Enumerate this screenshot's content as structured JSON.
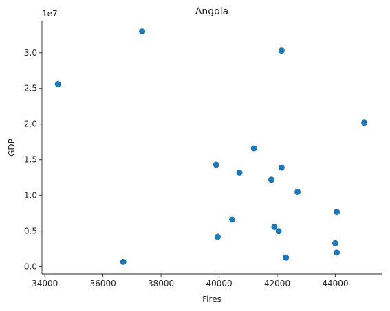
{
  "chart_data": {
    "type": "scatter",
    "title": "Angola",
    "xlabel": "Fires",
    "ylabel": "GDP",
    "y_offset_label": "1e7",
    "x_range": [
      33900,
      45600
    ],
    "y_range": [
      -0.1,
      3.45
    ],
    "x_ticks": [
      34000,
      36000,
      38000,
      40000,
      42000,
      44000
    ],
    "x_tick_labels": [
      "34000",
      "36000",
      "38000",
      "40000",
      "42000",
      "44000"
    ],
    "y_ticks": [
      0.0,
      0.5,
      1.0,
      1.5,
      2.0,
      2.5,
      3.0
    ],
    "y_tick_labels": [
      "0.0",
      "0.5",
      "1.0",
      "1.5",
      "2.0",
      "2.5",
      "3.0"
    ],
    "grid": false,
    "series_color": "#1f77b4",
    "points": [
      {
        "x": 34450,
        "y": 2.56
      },
      {
        "x": 36700,
        "y": 0.07
      },
      {
        "x": 37350,
        "y": 3.3
      },
      {
        "x": 39900,
        "y": 1.43
      },
      {
        "x": 39950,
        "y": 0.42
      },
      {
        "x": 40450,
        "y": 0.66
      },
      {
        "x": 40700,
        "y": 1.32
      },
      {
        "x": 41200,
        "y": 1.66
      },
      {
        "x": 41800,
        "y": 1.22
      },
      {
        "x": 41900,
        "y": 0.56
      },
      {
        "x": 42050,
        "y": 0.5
      },
      {
        "x": 42150,
        "y": 1.39
      },
      {
        "x": 42150,
        "y": 3.03
      },
      {
        "x": 42300,
        "y": 0.13
      },
      {
        "x": 42700,
        "y": 1.05
      },
      {
        "x": 44000,
        "y": 0.33
      },
      {
        "x": 44050,
        "y": 0.2
      },
      {
        "x": 44050,
        "y": 0.77
      },
      {
        "x": 45000,
        "y": 2.02
      }
    ]
  }
}
